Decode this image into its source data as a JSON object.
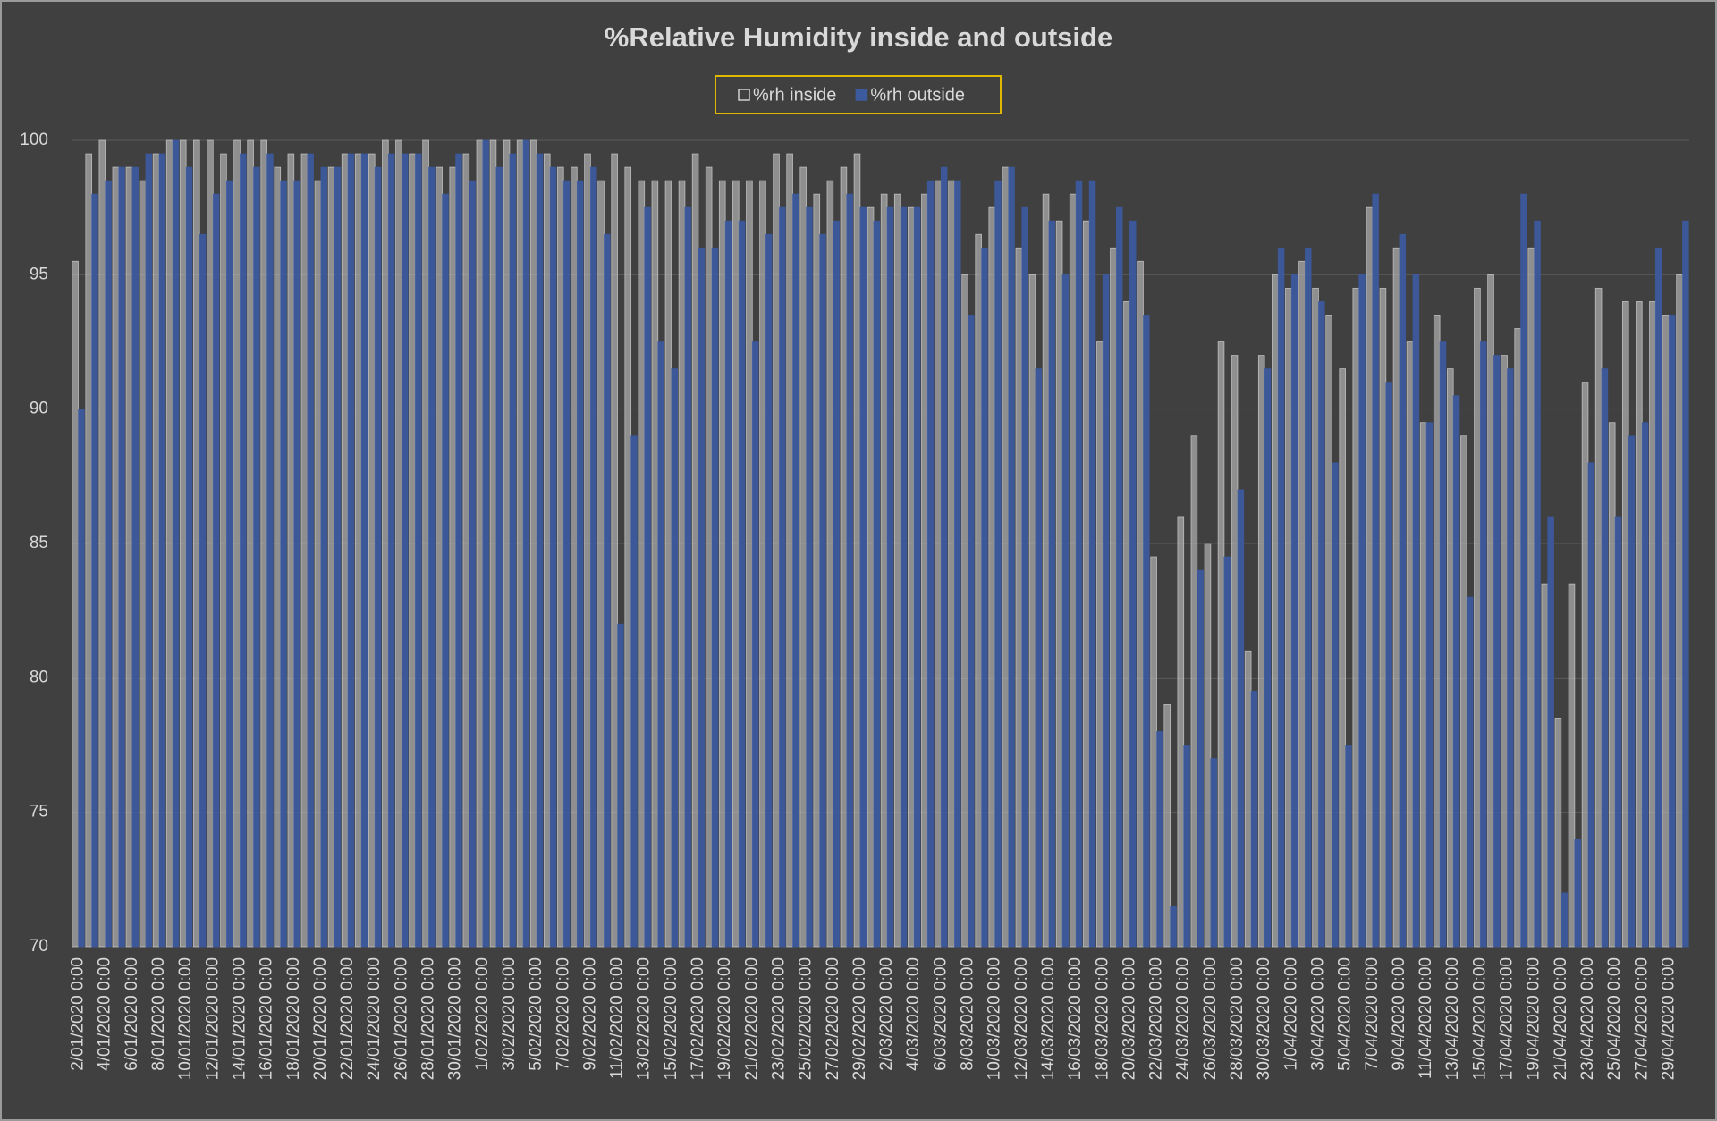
{
  "chart_data": {
    "type": "bar",
    "title": "%Relative Humidity inside and outside",
    "categories": [
      "2/01/2020 0:00",
      null,
      "4/01/2020 0:00",
      null,
      "6/01/2020 0:00",
      null,
      "8/01/2020 0:00",
      null,
      "10/01/2020 0:00",
      null,
      "12/01/2020 0:00",
      null,
      "14/01/2020 0:00",
      null,
      "16/01/2020 0:00",
      null,
      "18/01/2020 0:00",
      null,
      "20/01/2020 0:00",
      null,
      "22/01/2020 0:00",
      null,
      "24/01/2020 0:00",
      null,
      "26/01/2020 0:00",
      null,
      "28/01/2020 0:00",
      null,
      "30/01/2020 0:00",
      null,
      "1/02/2020 0:00",
      null,
      "3/02/2020 0:00",
      null,
      "5/02/2020 0:00",
      null,
      "7/02/2020 0:00",
      null,
      "9/02/2020 0:00",
      null,
      "11/02/2020 0:00",
      null,
      "13/02/2020 0:00",
      null,
      "15/02/2020 0:00",
      null,
      "17/02/2020 0:00",
      null,
      "19/02/2020 0:00",
      null,
      "21/02/2020 0:00",
      null,
      "23/02/2020 0:00",
      null,
      "25/02/2020 0:00",
      null,
      "27/02/2020 0:00",
      null,
      "29/02/2020 0:00",
      null,
      "2/03/2020 0:00",
      null,
      "4/03/2020 0:00",
      null,
      "6/03/2020 0:00",
      null,
      "8/03/2020 0:00",
      null,
      "10/03/2020 0:00",
      null,
      "12/03/2020 0:00",
      null,
      "14/03/2020 0:00",
      null,
      "16/03/2020 0:00",
      null,
      "18/03/2020 0:00",
      null,
      "20/03/2020 0:00",
      null,
      "22/03/2020 0:00",
      null,
      "24/03/2020 0:00",
      null,
      "26/03/2020 0:00",
      null,
      "28/03/2020 0:00",
      null,
      "30/03/2020 0:00",
      null,
      "1/04/2020 0:00",
      null,
      "3/04/2020 0:00",
      null,
      "5/04/2020 0:00",
      null,
      "7/04/2020 0:00",
      null,
      "9/04/2020 0:00",
      null,
      "11/04/2020 0:00",
      null,
      "13/04/2020 0:00",
      null,
      "15/04/2020 0:00",
      null,
      "17/04/2020 0:00",
      null,
      "19/04/2020 0:00",
      null,
      "21/04/2020 0:00",
      null,
      "23/04/2020 0:00",
      null,
      "25/04/2020 0:00",
      null,
      "27/04/2020 0:00",
      null,
      "29/04/2020 0:00",
      null
    ],
    "series": [
      {
        "name": "%rh inside",
        "color": "#d0d0d0",
        "values": [
          95.5,
          99.5,
          100,
          99,
          99,
          98.5,
          99.5,
          100,
          100,
          100,
          100,
          99.5,
          100,
          100,
          100,
          99,
          99.5,
          99.5,
          98.5,
          99,
          99.5,
          99.5,
          99.5,
          100,
          100,
          99.5,
          100,
          99,
          99,
          99.5,
          100,
          100,
          100,
          100,
          100,
          99.5,
          99,
          99,
          99.5,
          98.5,
          99.5,
          99,
          98.5,
          98.5,
          98.5,
          98.5,
          99.5,
          99,
          98.5,
          98.5,
          98.5,
          98.5,
          99.5,
          99.5,
          99,
          98,
          98.5,
          99,
          99.5,
          97.5,
          98,
          98,
          97.5,
          98,
          98.5,
          98.5,
          95,
          96.5,
          97.5,
          99,
          96,
          95,
          98,
          97,
          98,
          97,
          92.5,
          96,
          94,
          95.5,
          84.5,
          79,
          86,
          89,
          85,
          92.5,
          92,
          81,
          92,
          95,
          94.5,
          95.5,
          94.5,
          93.5,
          91.5,
          94.5,
          97.5,
          94.5,
          96,
          92.5,
          89.5,
          93.5,
          91.5,
          89,
          94.5,
          95,
          92,
          93,
          96,
          83.5,
          78.5,
          83.5,
          91,
          94.5,
          89.5,
          94,
          94,
          94,
          93.5,
          95
        ]
      },
      {
        "name": "%rh outside",
        "color": "#3c5a9e",
        "values": [
          90,
          98,
          98.5,
          99,
          99,
          99.5,
          99.5,
          100,
          99,
          96.5,
          98,
          98.5,
          99.5,
          99,
          99.5,
          98.5,
          98.5,
          99.5,
          99,
          99,
          99.5,
          99.5,
          99,
          99.5,
          99.5,
          99.5,
          99,
          98,
          99.5,
          98.5,
          100,
          99,
          99.5,
          100,
          99.5,
          99,
          98.5,
          98.5,
          99,
          96.5,
          82,
          89,
          97.5,
          92.5,
          91.5,
          97.5,
          96,
          96,
          97,
          97,
          92.5,
          96.5,
          97.5,
          98,
          97.5,
          96.5,
          97,
          98,
          97.5,
          97,
          97.5,
          97.5,
          97.5,
          98.5,
          99,
          98.5,
          93.5,
          96,
          98.5,
          99,
          97.5,
          91.5,
          97,
          95,
          98.5,
          98.5,
          95,
          97.5,
          97,
          93.5,
          78,
          71.5,
          77.5,
          84,
          77,
          84.5,
          87,
          79.5,
          91.5,
          96,
          95,
          96,
          94,
          88,
          77.5,
          95,
          98,
          91,
          96.5,
          95,
          89.5,
          92.5,
          90.5,
          83,
          92.5,
          92,
          91.5,
          98,
          97,
          86,
          72,
          74,
          88,
          91.5,
          86,
          89,
          89.5,
          96,
          93.5,
          97
        ]
      }
    ],
    "ylim": [
      70,
      100
    ],
    "yticks": [
      70,
      75,
      80,
      85,
      90,
      95,
      100
    ],
    "grid": true,
    "legend": "top"
  }
}
